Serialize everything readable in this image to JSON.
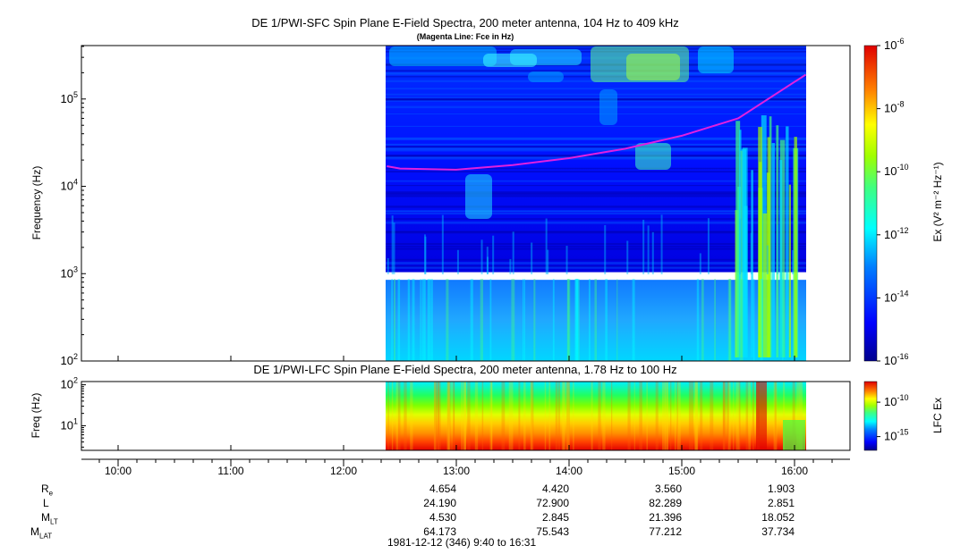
{
  "chart_data": [
    {
      "type": "heatmap",
      "title": "DE 1/PWI-SFC  Spin Plane E-Field Spectra, 200 meter antenna, 104 Hz to 409 kHz",
      "subtitle": "(Magenta Line: Fce in Hz)",
      "ylabel": "Frequency (Hz)",
      "yscale": "log",
      "ylim": [
        100,
        409000
      ],
      "yticks": [
        {
          "v": 100,
          "b": "10",
          "e": "2"
        },
        {
          "v": 1000,
          "b": "10",
          "e": "3"
        },
        {
          "v": 10000,
          "b": "10",
          "e": "4"
        },
        {
          "v": 100000,
          "b": "10",
          "e": "5"
        }
      ],
      "colorbar": {
        "label": "Ex (V² m⁻² Hz⁻¹)",
        "scale": "log",
        "range": [
          1e-16,
          1e-06
        ],
        "ticks": [
          {
            "v": -6,
            "b": "10",
            "e": "-6"
          },
          {
            "v": -8,
            "b": "10",
            "e": "-8"
          },
          {
            "v": -10,
            "b": "10",
            "e": "-10"
          },
          {
            "v": -12,
            "b": "10",
            "e": "-12"
          },
          {
            "v": -14,
            "b": "10",
            "e": "-14"
          },
          {
            "v": -16,
            "b": "10",
            "e": "-16"
          }
        ]
      },
      "data_time_range": [
        "12:23",
        "16:06"
      ],
      "data_gap_hz": [
        850,
        1040
      ],
      "fce_line": {
        "name": "Fce",
        "color": "#e020e0",
        "t": [
          "12:23",
          "12:30",
          "13:00",
          "13:30",
          "14:00",
          "14:30",
          "15:00",
          "15:30",
          "16:06"
        ],
        "hz": [
          17000,
          16000,
          15500,
          17500,
          21000,
          27000,
          38000,
          60000,
          190000
        ]
      }
    },
    {
      "type": "heatmap",
      "title": "DE 1/PWI-LFC  Spin Plane E-Field Spectra, 200 meter antenna, 1.78 Hz to 100 Hz",
      "ylabel": "Freq (Hz)",
      "yscale": "log",
      "ylim": [
        2.5,
        120
      ],
      "yticks": [
        {
          "v": 10,
          "b": "10",
          "e": "1"
        },
        {
          "v": 100,
          "b": "10",
          "e": "2"
        }
      ],
      "colorbar": {
        "label": "LFC Ex",
        "scale": "log",
        "range": [
          1e-17,
          1e-07
        ],
        "ticks": [
          {
            "v": -10,
            "b": "10",
            "e": "-10"
          },
          {
            "v": -15,
            "b": "10",
            "e": "-15"
          }
        ]
      },
      "data_time_range": [
        "12:23",
        "16:06"
      ]
    }
  ],
  "time_axis": {
    "ticks": [
      "10:00",
      "11:00",
      "12:00",
      "13:00",
      "14:00",
      "15:00",
      "16:00"
    ]
  },
  "ephemeris": {
    "labels": [
      {
        "main": "R",
        "sub": "e"
      },
      {
        "main": "L",
        "sub": ""
      },
      {
        "main": "M",
        "sub": "LT"
      },
      {
        "main": "M",
        "sub": "LAT"
      }
    ],
    "columns": [
      {
        "time": "13:00",
        "values": [
          "4.654",
          "24.190",
          "4.530",
          "64.173"
        ]
      },
      {
        "time": "14:00",
        "values": [
          "4.420",
          "72.900",
          "2.845",
          "75.543"
        ]
      },
      {
        "time": "15:00",
        "values": [
          "3.560",
          "82.289",
          "21.396",
          "77.212"
        ]
      },
      {
        "time": "16:00",
        "values": [
          "1.903",
          "2.851",
          "18.052",
          "37.734"
        ]
      }
    ]
  },
  "date_range": "1981-12-12 (346) 9:40 to 16:31"
}
